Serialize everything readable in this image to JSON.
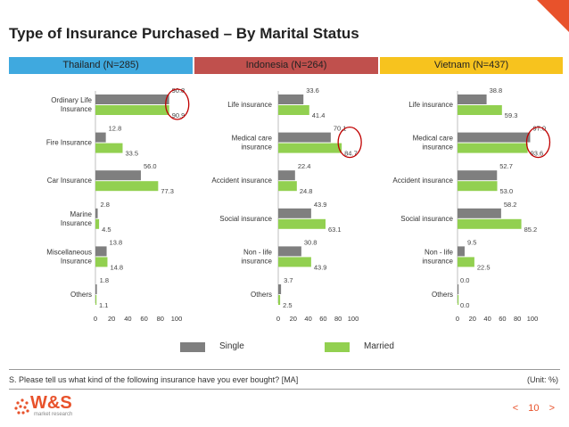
{
  "title": "Type of Insurance Purchased – By Marital Status",
  "colors": {
    "single": "#7f7f7f",
    "married": "#92d050",
    "thailand": "#3fa9df",
    "indonesia": "#c0504d",
    "vietnam": "#f7c31e",
    "accent": "#e8522b",
    "highlight": "#c00000"
  },
  "legend": {
    "single": "Single",
    "married": "Married"
  },
  "footnote": "S. Please tell us what kind of the following insurance have you ever bought? [MA]",
  "unit": "(Unit: %)",
  "logo": {
    "brand": "W&S",
    "tagline": "market research"
  },
  "page": {
    "number": "10",
    "prev": "<",
    "next": ">"
  },
  "chart_data": [
    {
      "type": "bar",
      "title": "Thailand (N=285)",
      "categories": [
        "Ordinary Life Insurance",
        "Fire Insurance",
        "Car Insurance",
        "Marine Insurance",
        "Miscellaneous Insurance",
        "Others"
      ],
      "series": [
        {
          "name": "Single",
          "values": [
            90.8,
            12.8,
            56.0,
            2.8,
            13.8,
            1.8
          ]
        },
        {
          "name": "Married",
          "values": [
            90.9,
            33.5,
            77.3,
            4.5,
            14.8,
            1.1
          ]
        }
      ],
      "highlight_category": "Ordinary Life Insurance",
      "xlim": [
        0,
        100
      ],
      "xticks": [
        "0",
        "20",
        "40",
        "60",
        "80",
        "100"
      ]
    },
    {
      "type": "bar",
      "title": "Indonesia (N=264)",
      "categories": [
        "Life insurance",
        "Medical care insurance",
        "Accident insurance",
        "Social insurance",
        "Non - life insurance",
        "Others"
      ],
      "series": [
        {
          "name": "Single",
          "values": [
            33.6,
            70.1,
            22.4,
            43.9,
            30.8,
            3.7
          ]
        },
        {
          "name": "Married",
          "values": [
            41.4,
            84.7,
            24.8,
            63.1,
            43.9,
            2.5
          ]
        }
      ],
      "highlight_category": "Medical care insurance",
      "xlim": [
        0,
        100
      ],
      "xticks": [
        "0",
        "20",
        "40",
        "60",
        "80",
        "100"
      ]
    },
    {
      "type": "bar",
      "title": "Vietnam (N=437)",
      "categories": [
        "Life insurance",
        "Medical care insurance",
        "Accident insurance",
        "Social insurance",
        "Non - life insurance",
        "Others"
      ],
      "series": [
        {
          "name": "Single",
          "values": [
            38.8,
            97.0,
            52.7,
            58.2,
            9.5,
            0.0
          ]
        },
        {
          "name": "Married",
          "values": [
            59.3,
            93.6,
            53.0,
            85.2,
            22.5,
            0.0
          ]
        }
      ],
      "highlight_category": "Medical care insurance",
      "xlim": [
        0,
        100
      ],
      "xticks": [
        "0",
        "20",
        "40",
        "60",
        "80",
        "100"
      ]
    }
  ]
}
